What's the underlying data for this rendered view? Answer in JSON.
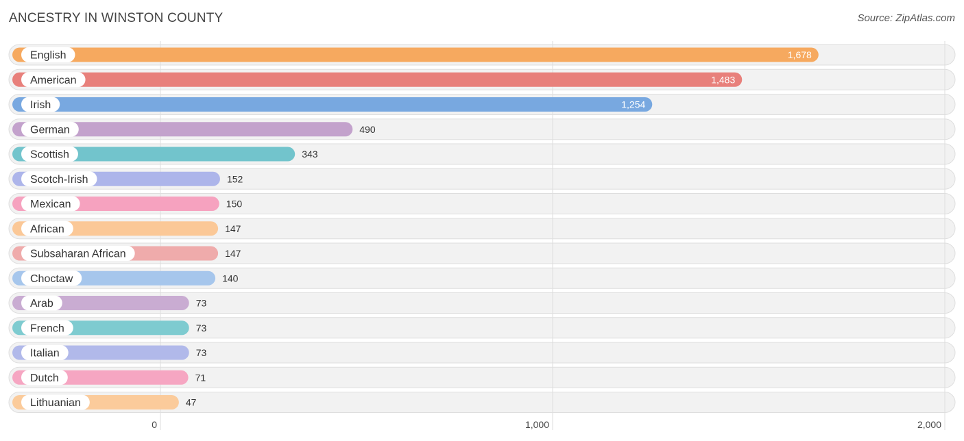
{
  "header": {
    "title": "ANCESTRY IN WINSTON COUNTY",
    "source": "Source: ZipAtlas.com"
  },
  "chart_data": {
    "type": "bar",
    "orientation": "horizontal",
    "title": "ANCESTRY IN WINSTON COUNTY",
    "xlabel": "",
    "ylabel": "",
    "xlim": [
      0,
      2000
    ],
    "xticks": [
      0,
      1000,
      2000
    ],
    "xtick_labels": [
      "0",
      "1,000",
      "2,000"
    ],
    "grid": true,
    "categories": [
      "English",
      "American",
      "Irish",
      "German",
      "Scottish",
      "Scotch-Irish",
      "Mexican",
      "African",
      "Subsaharan African",
      "Choctaw",
      "Arab",
      "French",
      "Italian",
      "Dutch",
      "Lithuanian"
    ],
    "values": [
      1678,
      1483,
      1254,
      490,
      343,
      152,
      150,
      147,
      147,
      140,
      73,
      73,
      73,
      71,
      47
    ],
    "value_labels": [
      "1,678",
      "1,483",
      "1,254",
      "490",
      "343",
      "152",
      "150",
      "147",
      "147",
      "140",
      "73",
      "73",
      "73",
      "71",
      "47"
    ],
    "colors": [
      "#f6a95f",
      "#e8807b",
      "#78a8e0",
      "#c3a2cc",
      "#72c4cc",
      "#adb5ea",
      "#f6a2bf",
      "#fbc897",
      "#efabab",
      "#a6c6ec",
      "#c9acd2",
      "#7ecbd0",
      "#b1b9ea",
      "#f6a6c2",
      "#fbcb9b"
    ]
  }
}
